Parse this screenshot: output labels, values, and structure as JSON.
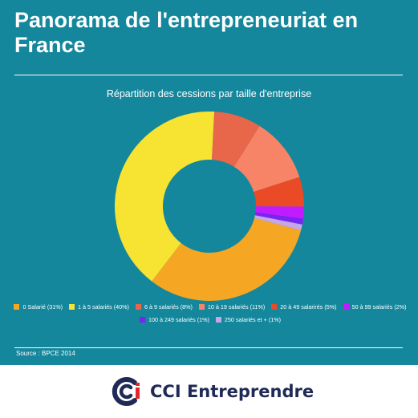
{
  "header": {
    "title": "Panorama de l'entrepreneuriat en France"
  },
  "chart_data": {
    "type": "pie",
    "style": "donut",
    "title": "Répartition des cessions par taille d'entreprise",
    "legend_position": "bottom",
    "slices": [
      {
        "label": "0 Salarié (31%)",
        "value": 31,
        "color": "#f5a623"
      },
      {
        "label": "1 à 5 salariés (40%)",
        "value": 40,
        "color": "#f7e332"
      },
      {
        "label": "6 à 9 salariés (8%)",
        "value": 8,
        "color": "#e8664a"
      },
      {
        "label": "10 à 19 salariés (11%)",
        "value": 11,
        "color": "#f78466"
      },
      {
        "label": "20 à 49 salarirés (5%)",
        "value": 5,
        "color": "#ea4a25"
      },
      {
        "label": "50 à 99 salariés (2%)",
        "value": 2,
        "color": "#c21bff"
      },
      {
        "label": "100 à 249 salariés (1%)",
        "value": 1,
        "color": "#7b24f2"
      },
      {
        "label": "250 salariés et + (1%)",
        "value": 1,
        "color": "#c6a7e6"
      }
    ]
  },
  "source": "Source : BPCE 2014",
  "footer": {
    "logo_text": "CCI Entreprendre",
    "logo_color": "#1f2a56",
    "logo_accent": "#e3262d",
    "background": "#ffffff"
  },
  "colors": {
    "background": "#14879c",
    "text": "#ffffff"
  }
}
